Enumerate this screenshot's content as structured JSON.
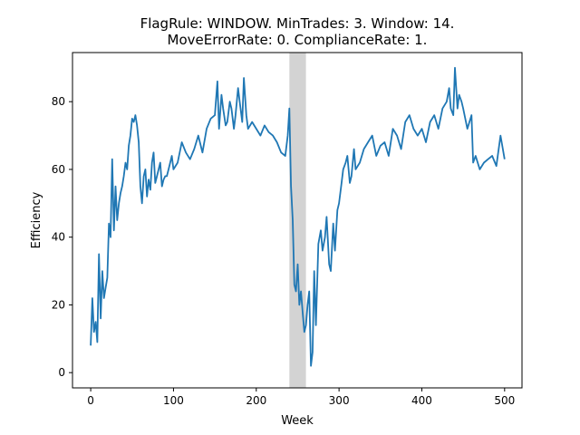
{
  "chart_data": {
    "type": "line",
    "title_line1": "FlagRule: WINDOW. MinTrades: 3. Window: 14.",
    "title_line2": "MoveErrorRate: 0. ComplianceRate: 1.",
    "xlabel": "Week",
    "ylabel": "Efficiency",
    "xlim": [
      -22,
      521
    ],
    "ylim": [
      -4.5,
      94.5
    ],
    "xticks": [
      0,
      100,
      200,
      300,
      400,
      500
    ],
    "yticks": [
      0,
      20,
      40,
      60,
      80
    ],
    "grid": false,
    "line_color": "#1f77b4",
    "shaded_region": {
      "x_start": 240,
      "x_end": 260,
      "color": "#d3d3d3"
    },
    "series": [
      {
        "x": [
          0,
          2,
          4,
          6,
          8,
          10,
          12,
          14,
          16,
          18,
          20,
          22,
          24,
          26,
          28,
          30,
          32,
          34,
          36,
          38,
          40,
          42,
          44,
          46,
          48,
          50,
          52,
          54,
          56,
          58,
          60,
          62,
          64,
          66,
          68,
          70,
          72,
          74,
          76,
          78,
          80,
          82,
          84,
          86,
          88,
          90,
          92,
          94,
          96,
          98,
          100,
          105,
          110,
          115,
          120,
          125,
          130,
          135,
          140,
          145,
          150,
          153,
          155,
          158,
          160,
          163,
          165,
          168,
          170,
          173,
          175,
          178,
          180,
          183,
          185,
          188,
          190,
          195,
          200,
          205,
          210,
          215,
          220,
          225,
          230,
          235,
          238,
          240,
          242,
          244,
          246,
          248,
          250,
          252,
          254,
          256,
          258,
          260,
          262,
          264,
          266,
          268,
          270,
          272,
          275,
          278,
          280,
          283,
          285,
          288,
          290,
          293,
          295,
          298,
          300,
          303,
          305,
          308,
          310,
          313,
          315,
          318,
          320,
          325,
          330,
          335,
          340,
          345,
          350,
          355,
          360,
          365,
          370,
          375,
          380,
          385,
          390,
          395,
          400,
          405,
          410,
          415,
          420,
          425,
          430,
          433,
          435,
          438,
          440,
          443,
          445,
          448,
          450,
          455,
          460,
          462,
          465,
          470,
          475,
          480,
          485,
          490,
          495,
          500
        ],
        "y": [
          8,
          22,
          12,
          15,
          9,
          35,
          16,
          30,
          22,
          25,
          28,
          44,
          40,
          63,
          42,
          55,
          45,
          50,
          53,
          55,
          58,
          62,
          60,
          67,
          70,
          75,
          74,
          76,
          73,
          68,
          55,
          50,
          58,
          60,
          52,
          57,
          54,
          62,
          65,
          56,
          58,
          60,
          62,
          55,
          57,
          58,
          58,
          60,
          62,
          64,
          60,
          62,
          68,
          65,
          63,
          66,
          70,
          65,
          72,
          75,
          76,
          86,
          72,
          82,
          78,
          73,
          74,
          80,
          78,
          72,
          76,
          84,
          80,
          74,
          87,
          76,
          72,
          74,
          72,
          70,
          73,
          71,
          70,
          68,
          65,
          64,
          70,
          78,
          55,
          45,
          26,
          24,
          32,
          20,
          24,
          18,
          12,
          14,
          20,
          24,
          2,
          6,
          30,
          14,
          38,
          42,
          36,
          40,
          46,
          32,
          30,
          44,
          36,
          48,
          50,
          56,
          60,
          62,
          64,
          56,
          58,
          66,
          60,
          62,
          66,
          68,
          70,
          64,
          67,
          68,
          64,
          72,
          70,
          66,
          74,
          76,
          72,
          70,
          72,
          68,
          74,
          76,
          72,
          78,
          80,
          84,
          78,
          76,
          90,
          78,
          82,
          80,
          78,
          72,
          76,
          62,
          64,
          60,
          62,
          63,
          64,
          61,
          70,
          63
        ]
      }
    ]
  }
}
